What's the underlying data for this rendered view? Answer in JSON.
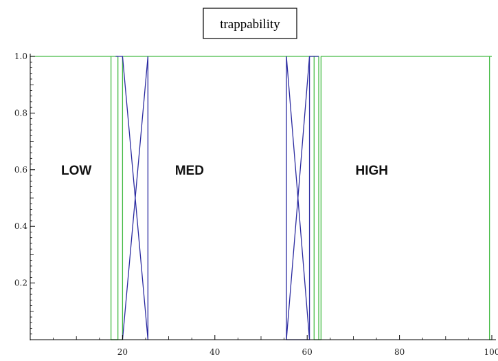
{
  "chart_data": {
    "type": "line",
    "title": "trappability",
    "xlabel": "",
    "ylabel": "",
    "xlim": [
      0,
      100
    ],
    "ylim": [
      0,
      1.0
    ],
    "x_ticks": [
      20,
      40,
      60,
      80,
      100
    ],
    "x_tick_labels": [
      "20",
      "40",
      "60",
      "80",
      "100"
    ],
    "y_ticks": [
      0.2,
      0.4,
      0.6,
      0.8,
      1.0
    ],
    "y_tick_labels": [
      "0.2",
      "0.4",
      "0.6",
      "0.8",
      "1.0"
    ],
    "grid": false,
    "region_labels": [
      {
        "text": "LOW",
        "x": 10,
        "y": 0.6
      },
      {
        "text": "MED",
        "x": 34.5,
        "y": 0.6
      },
      {
        "text": "HIGH",
        "x": 74,
        "y": 0.6
      }
    ],
    "series": [
      {
        "color": "#44bb44",
        "x": [
          0,
          17.5,
          17.5,
          20,
          20,
          61.5,
          61.5,
          63,
          63,
          99.5,
          99.5,
          100
        ],
        "y": [
          1,
          1,
          0,
          0,
          1,
          1,
          0,
          0,
          1,
          1,
          0,
          0
        ]
      },
      {
        "color": "#44bb44",
        "x": [
          17.5,
          19,
          19,
          17.5
        ],
        "y": [
          1,
          1,
          0,
          0
        ]
      },
      {
        "color": "#44bb44",
        "x": [
          61.5,
          62.5,
          62.5
        ],
        "y": [
          1,
          1,
          0
        ]
      },
      {
        "color": "#44bb44",
        "x": [
          99.5,
          100
        ],
        "y": [
          1,
          1
        ]
      },
      {
        "color": "#2a2aa0",
        "x": [
          18.5,
          20,
          25.5,
          25.5
        ],
        "y": [
          1,
          1,
          0,
          1
        ]
      },
      {
        "color": "#2a2aa0",
        "x": [
          20,
          25.5
        ],
        "y": [
          0,
          1
        ]
      },
      {
        "color": "#2a2aa0",
        "x": [
          55.5,
          60.5,
          60.5,
          62.5
        ],
        "y": [
          1,
          0,
          1,
          1
        ]
      },
      {
        "color": "#2a2aa0",
        "x": [
          55.5,
          55.5,
          60.5
        ],
        "y": [
          1,
          0,
          0
        ]
      },
      {
        "color": "#2a2aa0",
        "x": [
          55.5,
          60.5
        ],
        "y": [
          0,
          1
        ]
      }
    ]
  }
}
